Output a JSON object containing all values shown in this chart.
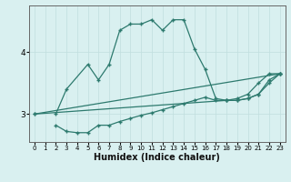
{
  "xlabel": "Humidex (Indice chaleur)",
  "ylabel": "",
  "bg_color": "#d9f0f0",
  "grid_color": "#c0dede",
  "line_color": "#2d7a6e",
  "xlim": [
    -0.5,
    23.5
  ],
  "ylim": [
    2.55,
    4.75
  ],
  "yticks": [
    3,
    4
  ],
  "xticks": [
    0,
    1,
    2,
    3,
    4,
    5,
    6,
    7,
    8,
    9,
    10,
    11,
    12,
    13,
    14,
    15,
    16,
    17,
    18,
    19,
    20,
    21,
    22,
    23
  ],
  "lines": [
    {
      "x": [
        2,
        3,
        5,
        6,
        7,
        8,
        9,
        10,
        11,
        12,
        13,
        14,
        15,
        16,
        17,
        18,
        19,
        20,
        21,
        22,
        23
      ],
      "y": [
        3.0,
        3.4,
        3.8,
        3.55,
        3.8,
        4.35,
        4.45,
        4.45,
        4.52,
        4.35,
        4.52,
        4.52,
        4.05,
        3.72,
        3.25,
        3.22,
        3.22,
        3.25,
        3.32,
        3.55,
        3.65
      ]
    },
    {
      "x": [
        2,
        3,
        4,
        5,
        6,
        7,
        8,
        9,
        10,
        11,
        12,
        13,
        14,
        15,
        16,
        17,
        18,
        19,
        20,
        21,
        22,
        23
      ],
      "y": [
        2.82,
        2.72,
        2.7,
        2.7,
        2.82,
        2.82,
        2.88,
        2.93,
        2.98,
        3.02,
        3.07,
        3.12,
        3.17,
        3.22,
        3.27,
        3.22,
        3.22,
        3.25,
        3.32,
        3.5,
        3.65,
        3.65
      ]
    },
    {
      "x": [
        0,
        23
      ],
      "y": [
        3.0,
        3.65
      ]
    },
    {
      "x": [
        0,
        18,
        19,
        20,
        21,
        22,
        23
      ],
      "y": [
        3.0,
        3.22,
        3.22,
        3.25,
        3.32,
        3.5,
        3.65
      ]
    }
  ]
}
